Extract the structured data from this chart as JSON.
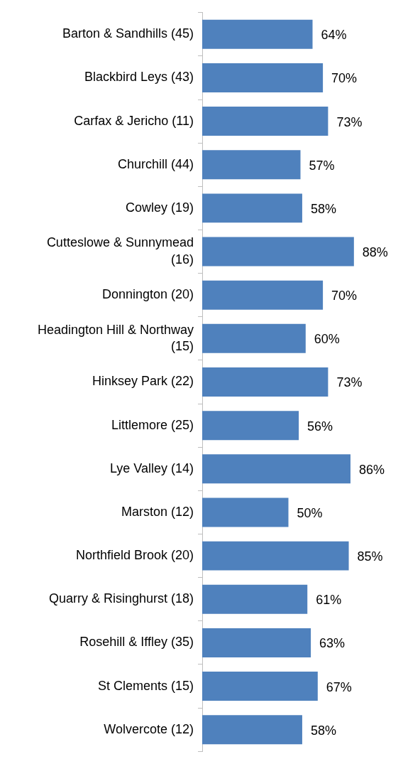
{
  "chart_data": {
    "type": "bar",
    "orientation": "horizontal",
    "categories": [
      "Barton & Sandhills (45)",
      "Blackbird Leys (43)",
      "Carfax & Jericho (11)",
      "Churchill (44)",
      "Cowley (19)",
      "Cutteslowe & Sunnymead (16)",
      "Donnington (20)",
      "Headington Hill & Northway (15)",
      "Hinksey Park (22)",
      "Littlemore (25)",
      "Lye Valley (14)",
      "Marston (12)",
      "Northfield Brook (20)",
      "Quarry & Risinghurst (18)",
      "Rosehill & Iffley (35)",
      "St Clements (15)",
      "Wolvercote (12)"
    ],
    "values": [
      64,
      70,
      73,
      57,
      58,
      88,
      70,
      60,
      73,
      56,
      86,
      50,
      85,
      61,
      63,
      67,
      58
    ],
    "value_labels": [
      "64%",
      "70%",
      "73%",
      "57%",
      "58%",
      "88%",
      "70%",
      "60%",
      "73%",
      "56%",
      "86%",
      "50%",
      "85%",
      "61%",
      "63%",
      "67%",
      "58%"
    ],
    "color": "#4f81bd",
    "tick_labels": "y"
  }
}
